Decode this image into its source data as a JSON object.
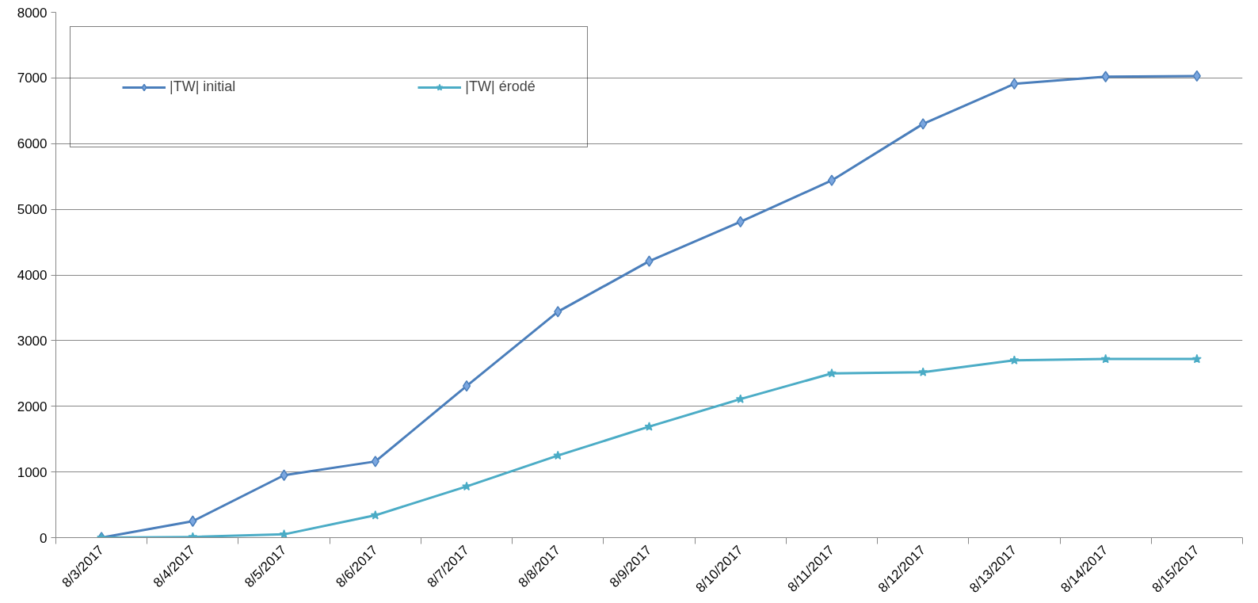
{
  "chart_data": {
    "type": "line",
    "categories": [
      "8/3/2017",
      "8/4/2017",
      "8/5/2017",
      "8/6/2017",
      "8/7/2017",
      "8/8/2017",
      "8/9/2017",
      "8/10/2017",
      "8/11/2017",
      "8/12/2017",
      "8/13/2017",
      "8/14/2017",
      "8/15/2017"
    ],
    "series": [
      {
        "name": "|TW| initial",
        "color": "#4a7ebb",
        "marker": "diamond",
        "values": [
          0,
          250,
          950,
          1160,
          2310,
          3440,
          4210,
          4810,
          5440,
          6300,
          6910,
          7020,
          7030
        ]
      },
      {
        "name": "|TW| érodé",
        "color": "#4bacc6",
        "marker": "star",
        "values": [
          0,
          10,
          50,
          340,
          780,
          1250,
          1690,
          2110,
          2500,
          2520,
          2700,
          2720,
          2720
        ]
      }
    ],
    "ylim": [
      0,
      8000
    ],
    "yticks": [
      0,
      1000,
      2000,
      3000,
      4000,
      5000,
      6000,
      7000,
      8000
    ],
    "grid": "y",
    "legend": "top left",
    "line_style": "solid"
  }
}
